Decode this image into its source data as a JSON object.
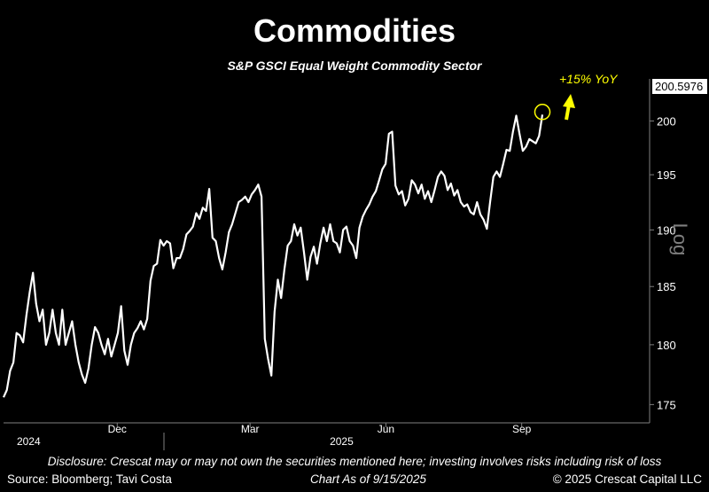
{
  "title": "Commodities",
  "subtitle": "S&P GSCI Equal Weight Commodity Sector",
  "annotation": "+15% YoY",
  "disclosure": "Disclosure: Crescat may or may not own the securities mentioned here; investing involves risks including risk of loss",
  "footer": {
    "source": "Source: Bloomberg; Tavi Costa",
    "as_of": "Chart As of 9/15/2025",
    "copyright": "© 2025 Crescat Capital LLC"
  },
  "colors": {
    "background": "#000000",
    "line": "#ffffff",
    "annotation": "#ffff00",
    "axis": "#7f7f7f"
  },
  "chart_data": {
    "type": "line",
    "scale": "log",
    "axis_label": "Log",
    "last_value_label": "200.5976",
    "ylim": [
      173.5,
      204
    ],
    "y_ticks": [
      175,
      180,
      185,
      190,
      195,
      200
    ],
    "x_ticks": [
      {
        "label": "Dec",
        "x": "2024-12-01"
      },
      {
        "label": "Mar",
        "x": "2025-03-01"
      },
      {
        "label": "Jun",
        "x": "2025-06-01"
      },
      {
        "label": "Sep",
        "x": "2025-09-01"
      }
    ],
    "year_labels": [
      {
        "label": "2024",
        "x": "2024-11-01"
      },
      {
        "label": "2025",
        "x": "2025-06-01"
      }
    ],
    "series": [
      {
        "values": [
          175.6,
          176.2,
          177.8,
          178.5,
          181,
          180.8,
          180.2,
          182.5,
          184.5,
          186.2,
          183.5,
          182,
          183,
          180,
          181,
          183,
          181,
          180,
          183,
          180,
          181,
          182,
          180,
          178.5,
          177.5,
          176.8,
          178,
          180,
          181.5,
          181,
          180,
          179.2,
          180.5,
          179,
          180,
          181,
          183.3,
          179.5,
          178.3,
          180,
          181,
          181.4,
          182,
          181.3,
          182.2,
          185.5,
          186.8,
          187,
          189.1,
          188.6,
          189,
          188.8,
          186.6,
          187.5,
          187.5,
          188.3,
          189.6,
          189.9,
          190.3,
          191.5,
          191,
          192,
          191.7,
          193.7,
          189.3,
          189,
          187.5,
          186.5,
          188,
          189.8,
          190.5,
          191.5,
          192.5,
          192.7,
          193,
          192.5,
          193.2,
          193.6,
          194.1,
          193,
          180.5,
          178.8,
          177.4,
          182.8,
          185.6,
          184,
          186.5,
          188.6,
          189,
          190.5,
          189.5,
          190.2,
          188,
          185.6,
          187.6,
          188.5,
          187,
          188.8,
          190.2,
          189,
          190.5,
          189,
          188.8,
          188,
          190,
          190.3,
          189,
          188.6,
          187.5,
          190.2,
          191.2,
          191.8,
          192.3,
          193,
          193.5,
          194.5,
          195.5,
          196,
          198.8,
          199,
          194,
          193.2,
          193.5,
          192.2,
          192.8,
          194.5,
          194.1,
          193.3,
          194.1,
          192.8,
          193.5,
          192.5,
          193.6,
          194.8,
          195.3,
          194.9,
          193.6,
          194.2,
          193.1,
          193.6,
          192.5,
          192.1,
          192.3,
          191.6,
          191.4,
          192.5,
          191.4,
          190.9,
          190.1,
          192.5,
          194.8,
          195.3,
          194.8,
          196,
          197.3,
          197.2,
          199,
          200.5,
          198.8,
          197.2,
          197.6,
          198.3,
          198.1,
          197.9,
          198.6,
          200.5976
        ]
      }
    ]
  }
}
